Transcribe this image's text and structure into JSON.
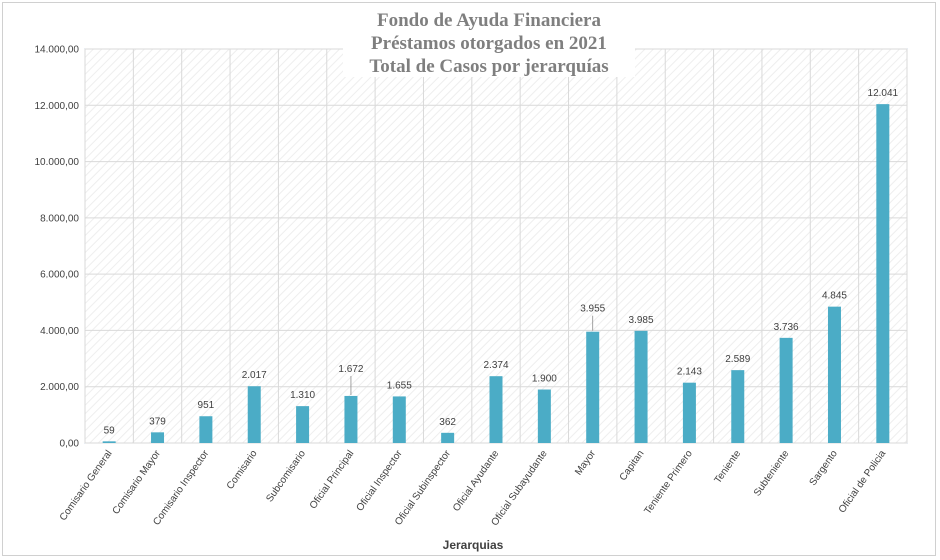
{
  "chart_data": {
    "type": "bar",
    "title_lines": [
      "Fondo de Ayuda Financiera",
      "Préstamos otorgados en 2021",
      "Total de Casos por jerarquías"
    ],
    "xlabel": "Jerarquias",
    "ylabel": "",
    "ylim": [
      0,
      14000
    ],
    "yticks": [
      0,
      2000,
      4000,
      6000,
      8000,
      10000,
      12000,
      14000
    ],
    "ytick_labels": [
      "0,00",
      "2.000,00",
      "4.000,00",
      "6.000,00",
      "8.000,00",
      "10.000,00",
      "12.000,00",
      "14.000,00"
    ],
    "categories": [
      "Comisario General",
      "Comisario Mayor",
      "Comisario Inspector",
      "Comisario",
      "Subcomisario",
      "Oficial Principal",
      "Oficial Inspector",
      "Oficial Subinspector",
      "Oficial Ayudante",
      "Oficial Subayudante",
      "Mayor",
      "Capitan",
      "Teniente Primero",
      "Teniente",
      "Subteniente",
      "Sargento",
      "Oficial de Policia"
    ],
    "values": [
      59,
      379,
      951,
      2017,
      1310,
      1672,
      1655,
      362,
      2374,
      1900,
      3955,
      3985,
      2143,
      2589,
      3736,
      4845,
      12041
    ],
    "value_labels": [
      "59",
      "379",
      "951",
      "2.017",
      "1.310",
      "1.672",
      "1.655",
      "362",
      "2.374",
      "1.900",
      "3.955",
      "3.985",
      "2.143",
      "2.589",
      "3.736",
      "4.845",
      "12.041"
    ],
    "grid": true,
    "legend": "none",
    "colors": {
      "bar": "#4bacc6",
      "grid": "#d9d9d9",
      "text": "#404040",
      "title": "#7f7f7f"
    }
  }
}
